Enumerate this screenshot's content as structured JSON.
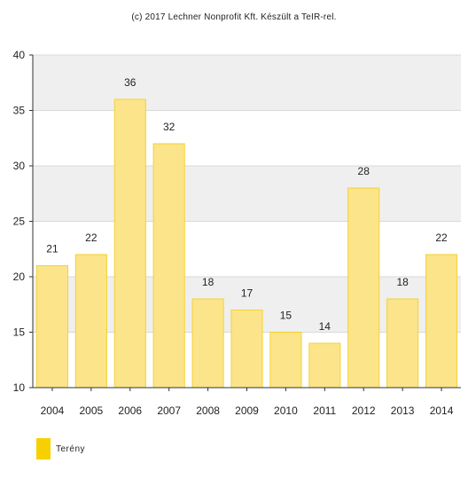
{
  "credit": "(c) 2017 Lechner Nonprofit Kft. Készült a TeIR-rel.",
  "colors": {
    "bar_fill": "#fbe48a",
    "bar_stroke": "#f5d233",
    "band": "#efefef",
    "grid": "#d9d9d9",
    "axis": "#333333",
    "legend_swatch": "#f7d000"
  },
  "chart_data": {
    "type": "bar",
    "categories": [
      "2004",
      "2005",
      "2006",
      "2007",
      "2008",
      "2009",
      "2010",
      "2011",
      "2012",
      "2013",
      "2014"
    ],
    "series": [
      {
        "name": "Terény",
        "values": [
          21,
          22,
          36,
          32,
          18,
          17,
          15,
          14,
          28,
          18,
          22
        ]
      }
    ],
    "yticks": [
      10,
      15,
      20,
      25,
      30,
      35,
      40
    ],
    "ylim": [
      10,
      40
    ],
    "grid": true,
    "legend": "bottom-left",
    "title": "",
    "xlabel": "",
    "ylabel": ""
  }
}
